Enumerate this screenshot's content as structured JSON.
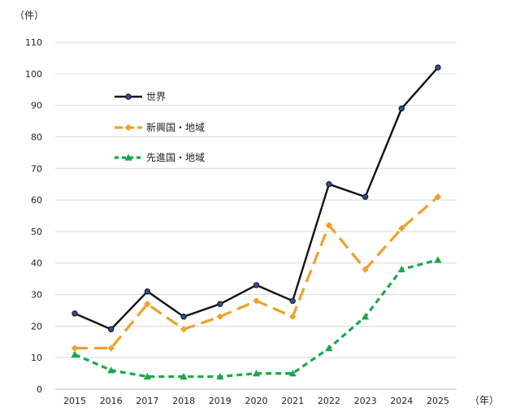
{
  "chart_data": {
    "type": "line",
    "y_unit_label": "（件）",
    "x_unit_label": "（年）",
    "x": [
      "2015",
      "2016",
      "2017",
      "2018",
      "2019",
      "2020",
      "2021",
      "2022",
      "2023",
      "2024",
      "2025"
    ],
    "ylim": [
      0,
      110
    ],
    "y_ticks": [
      0,
      10,
      20,
      30,
      40,
      50,
      60,
      70,
      80,
      90,
      100,
      110
    ],
    "grid": true,
    "legend_position": "upper-left-inside",
    "series": [
      {
        "name": "世界",
        "color": "#111111",
        "marker_color": "#2f4f9c",
        "line_style": "solid",
        "marker": "circle",
        "values": [
          24,
          19,
          31,
          23,
          27,
          33,
          28,
          65,
          61,
          89,
          102
        ]
      },
      {
        "name": "新興国・地域",
        "color": "#f0a02a",
        "line_style": "long-dash",
        "marker": "diamond",
        "values": [
          13,
          13,
          27,
          19,
          23,
          28,
          23,
          52,
          38,
          51,
          61
        ]
      },
      {
        "name": "先進国・地域",
        "color": "#1aa84b",
        "line_style": "short-dash",
        "marker": "triangle",
        "values": [
          11,
          6,
          4,
          4,
          4,
          5,
          5,
          13,
          23,
          38,
          41
        ]
      }
    ]
  }
}
